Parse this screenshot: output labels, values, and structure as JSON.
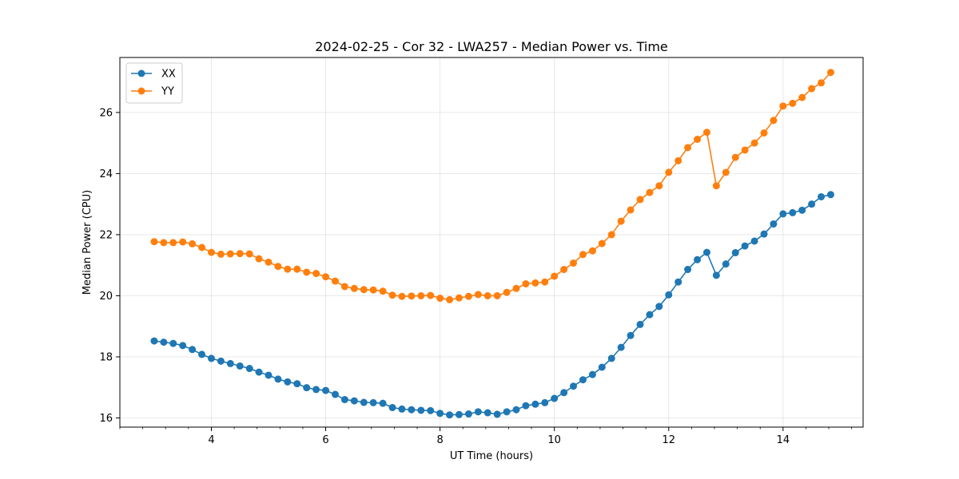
{
  "chart_data": {
    "type": "line",
    "title": "2024-02-25 - Cor 32 - LWA257 - Median Power vs. Time",
    "xlabel": "UT Time (hours)",
    "ylabel": "Median Power (CPU)",
    "xlim": [
      2.4,
      15.4
    ],
    "ylim": [
      15.7,
      27.8
    ],
    "xticks": [
      4,
      6,
      8,
      10,
      12,
      14
    ],
    "yticks": [
      16,
      18,
      20,
      22,
      24,
      26
    ],
    "grid": true,
    "legend_position": "top-left",
    "x": [
      3.0,
      3.167,
      3.333,
      3.5,
      3.667,
      3.833,
      4.0,
      4.167,
      4.333,
      4.5,
      4.667,
      4.833,
      5.0,
      5.167,
      5.333,
      5.5,
      5.667,
      5.833,
      6.0,
      6.167,
      6.333,
      6.5,
      6.667,
      6.833,
      7.0,
      7.167,
      7.333,
      7.5,
      7.667,
      7.833,
      8.0,
      8.167,
      8.333,
      8.5,
      8.667,
      8.833,
      9.0,
      9.167,
      9.333,
      9.5,
      9.667,
      9.833,
      10.0,
      10.167,
      10.333,
      10.5,
      10.667,
      10.833,
      11.0,
      11.167,
      11.333,
      11.5,
      11.667,
      11.833,
      12.0,
      12.167,
      12.333,
      12.5,
      12.667,
      12.833,
      13.0,
      13.167,
      13.333,
      13.5,
      13.667,
      13.833,
      14.0,
      14.167,
      14.333,
      14.5,
      14.667,
      14.833
    ],
    "series": [
      {
        "name": "XX",
        "color": "#1f77b4",
        "values": [
          18.52,
          18.48,
          18.44,
          18.37,
          18.24,
          18.08,
          17.95,
          17.86,
          17.78,
          17.7,
          17.62,
          17.5,
          17.4,
          17.27,
          17.18,
          17.12,
          16.99,
          16.93,
          16.9,
          16.77,
          16.6,
          16.56,
          16.51,
          16.5,
          16.48,
          16.34,
          16.29,
          16.27,
          16.25,
          16.24,
          16.15,
          16.1,
          16.11,
          16.13,
          16.2,
          16.17,
          16.12,
          16.2,
          16.27,
          16.4,
          16.45,
          16.5,
          16.64,
          16.83,
          17.04,
          17.25,
          17.42,
          17.66,
          17.95,
          18.31,
          18.7,
          19.06,
          19.38,
          19.65,
          20.03,
          20.45,
          20.86,
          21.18,
          21.42,
          20.67,
          21.04,
          21.41,
          21.63,
          21.79,
          22.02,
          22.35,
          22.68,
          22.72,
          22.8,
          23.0,
          23.24,
          23.31
        ]
      },
      {
        "name": "YY",
        "color": "#ff7f0e",
        "values": [
          21.77,
          21.74,
          21.74,
          21.76,
          21.7,
          21.58,
          21.42,
          21.36,
          21.37,
          21.38,
          21.37,
          21.21,
          21.1,
          20.96,
          20.87,
          20.87,
          20.77,
          20.73,
          20.62,
          20.48,
          20.3,
          20.24,
          20.2,
          20.19,
          20.15,
          20.02,
          19.98,
          19.99,
          20.0,
          20.01,
          19.92,
          19.87,
          19.93,
          19.98,
          20.04,
          20.0,
          20.0,
          20.11,
          20.24,
          20.39,
          20.42,
          20.45,
          20.64,
          20.86,
          21.07,
          21.35,
          21.47,
          21.71,
          22.0,
          22.44,
          22.81,
          23.15,
          23.38,
          23.6,
          24.04,
          24.42,
          24.85,
          25.12,
          25.35,
          23.6,
          24.04,
          24.53,
          24.77,
          25.0,
          25.33,
          25.74,
          26.21,
          26.3,
          26.49,
          26.78,
          26.97,
          27.31
        ]
      }
    ]
  }
}
